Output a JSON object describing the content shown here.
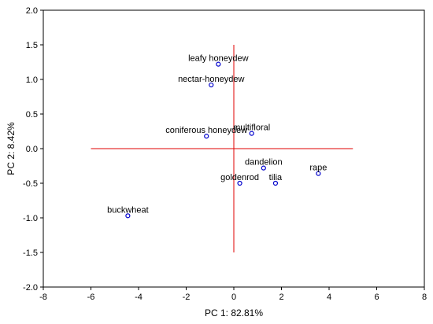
{
  "chart_data": {
    "type": "scatter",
    "title": "",
    "xlabel": "PC 1: 82.81%",
    "ylabel": "PC 2:  8.42%",
    "xlim": [
      -8,
      8
    ],
    "ylim": [
      -2.0,
      2.0
    ],
    "xticks": [
      "-8",
      "-6",
      "-4",
      "-2",
      "0",
      "2",
      "4",
      "6",
      "8"
    ],
    "yticks": [
      "2.0",
      "1.5",
      "1.0",
      "0.5",
      "0.0",
      "-0.5",
      "-1.0",
      "-1.5",
      "-2.0"
    ],
    "grid": false,
    "marker_color": "#0000cc",
    "reference_line_color": "#e00000",
    "reference_lines": {
      "horizontal": {
        "y": 0.0,
        "x_from": -6,
        "x_to": 5
      },
      "vertical": {
        "x": 0.0,
        "y_from": -1.5,
        "y_to": 1.5
      }
    },
    "points": [
      {
        "label": "leafy honeydew",
        "x": -0.65,
        "y": 1.22
      },
      {
        "label": "nectar-honeydew",
        "x": -0.95,
        "y": 0.92
      },
      {
        "label": "coniferous honeydew",
        "x": -1.15,
        "y": 0.18
      },
      {
        "label": "multifloral",
        "x": 0.75,
        "y": 0.22
      },
      {
        "label": "dandelion",
        "x": 1.25,
        "y": -0.28
      },
      {
        "label": "goldenrod",
        "x": 0.25,
        "y": -0.5
      },
      {
        "label": "tilia",
        "x": 1.75,
        "y": -0.5
      },
      {
        "label": "rape",
        "x": 3.55,
        "y": -0.36
      },
      {
        "label": "buckwheat",
        "x": -4.45,
        "y": -0.97
      }
    ]
  }
}
